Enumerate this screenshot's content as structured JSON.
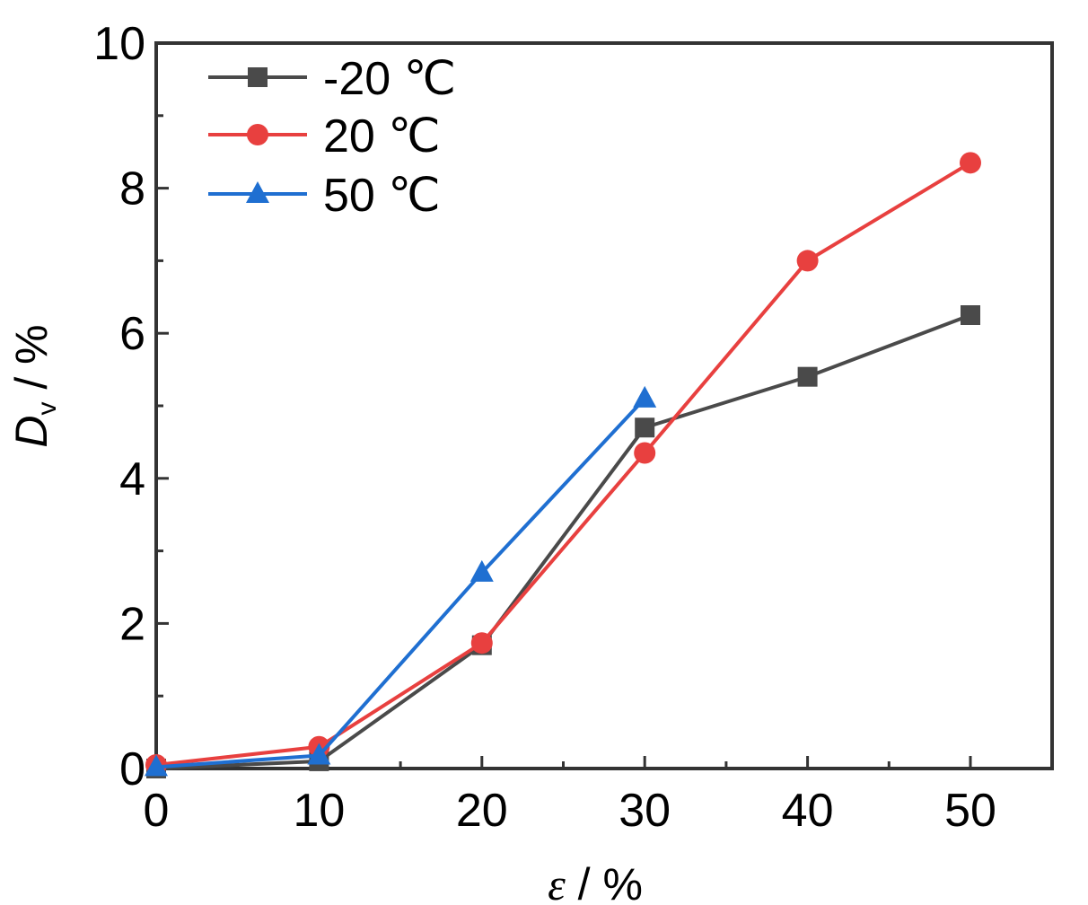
{
  "chart_data": {
    "type": "line",
    "xlabel": {
      "symbol": "ε",
      "unit": " / %"
    },
    "ylabel": {
      "symbol": "D",
      "subscript": "v",
      "unit": " / %"
    },
    "xlim": [
      0,
      55
    ],
    "ylim": [
      0,
      10
    ],
    "xticks": [
      0,
      10,
      20,
      30,
      40,
      50
    ],
    "yticks": [
      0,
      2,
      4,
      6,
      8,
      10
    ],
    "grid": false,
    "legend_position": "top-left",
    "series": [
      {
        "name": "-20 ℃",
        "color": "#4a4a4a",
        "marker": "square",
        "x": [
          0,
          10,
          20,
          30,
          40,
          50
        ],
        "y": [
          0.0,
          0.1,
          1.7,
          4.7,
          5.4,
          6.25
        ]
      },
      {
        "name": "20 ℃",
        "color": "#e8403f",
        "marker": "circle",
        "x": [
          0,
          10,
          20,
          30,
          40,
          50
        ],
        "y": [
          0.05,
          0.3,
          1.73,
          4.35,
          7.0,
          8.35
        ]
      },
      {
        "name": "50 ℃",
        "color": "#1f6fd1",
        "marker": "triangle",
        "x": [
          0,
          10,
          20,
          30
        ],
        "y": [
          0.02,
          0.18,
          2.7,
          5.1
        ]
      }
    ]
  }
}
